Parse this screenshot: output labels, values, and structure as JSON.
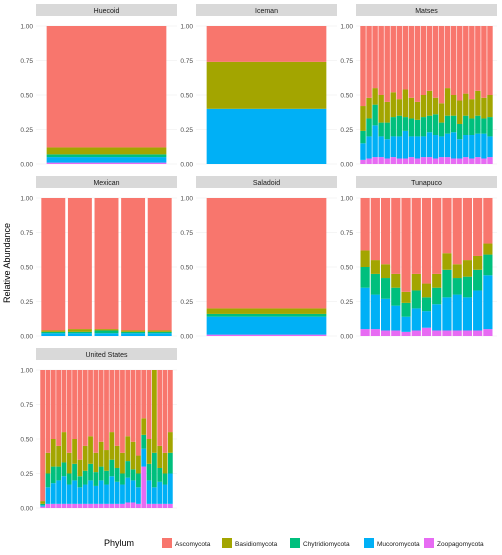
{
  "chart_data": {
    "type": "bar",
    "stacked": true,
    "layout": "facet-grid",
    "ylabel": "Relative Abundance",
    "ylim": [
      0,
      1
    ],
    "yticks": [
      "0.00",
      "0.25",
      "0.50",
      "0.75",
      "1.00"
    ],
    "legend": {
      "title": "Phylum",
      "placement": "bottom",
      "entries": [
        "Ascomycota",
        "Basidiomycota",
        "Chytridiomycota",
        "Mucoromycota",
        "Zoopagomycota"
      ]
    },
    "colors": {
      "Ascomycota": "#F8766D",
      "Basidiomycota": "#A3A500",
      "Chytridiomycota": "#00BF7D",
      "Mucoromycota": "#00B0F6",
      "Zoopagomycota": "#E76BF3"
    },
    "panel_background": "#ffffff",
    "strip_background": "#D9D9D9",
    "grid": true,
    "facets": [
      {
        "name": "Huecoid",
        "samples": [
          {
            "Ascomycota": 0.88,
            "Basidiomycota": 0.05,
            "Chytridiomycota": 0.02,
            "Mucoromycota": 0.04,
            "Zoopagomycota": 0.01
          }
        ]
      },
      {
        "name": "Iceman",
        "samples": [
          {
            "Ascomycota": 0.26,
            "Basidiomycota": 0.34,
            "Chytridiomycota": 0.0,
            "Mucoromycota": 0.4,
            "Zoopagomycota": 0.0
          }
        ]
      },
      {
        "name": "Matses",
        "samples": [
          {
            "Ascomycota": 0.58,
            "Basidiomycota": 0.18,
            "Chytridiomycota": 0.09,
            "Mucoromycota": 0.12,
            "Zoopagomycota": 0.03
          },
          {
            "Ascomycota": 0.52,
            "Basidiomycota": 0.15,
            "Chytridiomycota": 0.13,
            "Mucoromycota": 0.16,
            "Zoopagomycota": 0.04
          },
          {
            "Ascomycota": 0.45,
            "Basidiomycota": 0.12,
            "Chytridiomycota": 0.15,
            "Mucoromycota": 0.23,
            "Zoopagomycota": 0.05
          },
          {
            "Ascomycota": 0.5,
            "Basidiomycota": 0.2,
            "Chytridiomycota": 0.1,
            "Mucoromycota": 0.15,
            "Zoopagomycota": 0.05
          },
          {
            "Ascomycota": 0.55,
            "Basidiomycota": 0.15,
            "Chytridiomycota": 0.12,
            "Mucoromycota": 0.14,
            "Zoopagomycota": 0.04
          },
          {
            "Ascomycota": 0.48,
            "Basidiomycota": 0.18,
            "Chytridiomycota": 0.14,
            "Mucoromycota": 0.15,
            "Zoopagomycota": 0.05
          },
          {
            "Ascomycota": 0.53,
            "Basidiomycota": 0.12,
            "Chytridiomycota": 0.15,
            "Mucoromycota": 0.16,
            "Zoopagomycota": 0.04
          },
          {
            "Ascomycota": 0.46,
            "Basidiomycota": 0.2,
            "Chytridiomycota": 0.1,
            "Mucoromycota": 0.2,
            "Zoopagomycota": 0.04
          },
          {
            "Ascomycota": 0.52,
            "Basidiomycota": 0.15,
            "Chytridiomycota": 0.13,
            "Mucoromycota": 0.15,
            "Zoopagomycota": 0.05
          },
          {
            "Ascomycota": 0.55,
            "Basidiomycota": 0.13,
            "Chytridiomycota": 0.12,
            "Mucoromycota": 0.16,
            "Zoopagomycota": 0.04
          },
          {
            "Ascomycota": 0.5,
            "Basidiomycota": 0.16,
            "Chytridiomycota": 0.14,
            "Mucoromycota": 0.15,
            "Zoopagomycota": 0.05
          },
          {
            "Ascomycota": 0.47,
            "Basidiomycota": 0.18,
            "Chytridiomycota": 0.12,
            "Mucoromycota": 0.18,
            "Zoopagomycota": 0.05
          },
          {
            "Ascomycota": 0.52,
            "Basidiomycota": 0.12,
            "Chytridiomycota": 0.15,
            "Mucoromycota": 0.17,
            "Zoopagomycota": 0.04
          },
          {
            "Ascomycota": 0.56,
            "Basidiomycota": 0.14,
            "Chytridiomycota": 0.1,
            "Mucoromycota": 0.15,
            "Zoopagomycota": 0.05
          },
          {
            "Ascomycota": 0.45,
            "Basidiomycota": 0.2,
            "Chytridiomycota": 0.13,
            "Mucoromycota": 0.17,
            "Zoopagomycota": 0.05
          },
          {
            "Ascomycota": 0.5,
            "Basidiomycota": 0.15,
            "Chytridiomycota": 0.12,
            "Mucoromycota": 0.19,
            "Zoopagomycota": 0.04
          },
          {
            "Ascomycota": 0.54,
            "Basidiomycota": 0.17,
            "Chytridiomycota": 0.11,
            "Mucoromycota": 0.14,
            "Zoopagomycota": 0.04
          },
          {
            "Ascomycota": 0.49,
            "Basidiomycota": 0.16,
            "Chytridiomycota": 0.14,
            "Mucoromycota": 0.16,
            "Zoopagomycota": 0.05
          },
          {
            "Ascomycota": 0.53,
            "Basidiomycota": 0.14,
            "Chytridiomycota": 0.12,
            "Mucoromycota": 0.17,
            "Zoopagomycota": 0.04
          },
          {
            "Ascomycota": 0.47,
            "Basidiomycota": 0.18,
            "Chytridiomycota": 0.13,
            "Mucoromycota": 0.17,
            "Zoopagomycota": 0.05
          },
          {
            "Ascomycota": 0.52,
            "Basidiomycota": 0.15,
            "Chytridiomycota": 0.11,
            "Mucoromycota": 0.18,
            "Zoopagomycota": 0.04
          },
          {
            "Ascomycota": 0.5,
            "Basidiomycota": 0.16,
            "Chytridiomycota": 0.14,
            "Mucoromycota": 0.15,
            "Zoopagomycota": 0.05
          }
        ]
      },
      {
        "name": "Mexican",
        "samples": [
          {
            "Ascomycota": 0.96,
            "Basidiomycota": 0.01,
            "Chytridiomycota": 0.01,
            "Mucoromycota": 0.02,
            "Zoopagomycota": 0.0
          },
          {
            "Ascomycota": 0.95,
            "Basidiomycota": 0.02,
            "Chytridiomycota": 0.01,
            "Mucoromycota": 0.02,
            "Zoopagomycota": 0.0
          },
          {
            "Ascomycota": 0.95,
            "Basidiomycota": 0.01,
            "Chytridiomycota": 0.02,
            "Mucoromycota": 0.02,
            "Zoopagomycota": 0.0
          },
          {
            "Ascomycota": 0.96,
            "Basidiomycota": 0.01,
            "Chytridiomycota": 0.01,
            "Mucoromycota": 0.02,
            "Zoopagomycota": 0.0
          },
          {
            "Ascomycota": 0.96,
            "Basidiomycota": 0.01,
            "Chytridiomycota": 0.01,
            "Mucoromycota": 0.02,
            "Zoopagomycota": 0.0
          }
        ]
      },
      {
        "name": "Saladoid",
        "samples": [
          {
            "Ascomycota": 0.8,
            "Basidiomycota": 0.04,
            "Chytridiomycota": 0.02,
            "Mucoromycota": 0.13,
            "Zoopagomycota": 0.01
          }
        ]
      },
      {
        "name": "Tunapuco",
        "samples": [
          {
            "Ascomycota": 0.38,
            "Basidiomycota": 0.12,
            "Chytridiomycota": 0.15,
            "Mucoromycota": 0.3,
            "Zoopagomycota": 0.05
          },
          {
            "Ascomycota": 0.45,
            "Basidiomycota": 0.1,
            "Chytridiomycota": 0.15,
            "Mucoromycota": 0.25,
            "Zoopagomycota": 0.05
          },
          {
            "Ascomycota": 0.48,
            "Basidiomycota": 0.1,
            "Chytridiomycota": 0.15,
            "Mucoromycota": 0.23,
            "Zoopagomycota": 0.04
          },
          {
            "Ascomycota": 0.55,
            "Basidiomycota": 0.1,
            "Chytridiomycota": 0.13,
            "Mucoromycota": 0.18,
            "Zoopagomycota": 0.04
          },
          {
            "Ascomycota": 0.68,
            "Basidiomycota": 0.08,
            "Chytridiomycota": 0.1,
            "Mucoromycota": 0.11,
            "Zoopagomycota": 0.03
          },
          {
            "Ascomycota": 0.55,
            "Basidiomycota": 0.12,
            "Chytridiomycota": 0.13,
            "Mucoromycota": 0.16,
            "Zoopagomycota": 0.04
          },
          {
            "Ascomycota": 0.62,
            "Basidiomycota": 0.1,
            "Chytridiomycota": 0.1,
            "Mucoromycota": 0.12,
            "Zoopagomycota": 0.06
          },
          {
            "Ascomycota": 0.55,
            "Basidiomycota": 0.1,
            "Chytridiomycota": 0.12,
            "Mucoromycota": 0.19,
            "Zoopagomycota": 0.04
          },
          {
            "Ascomycota": 0.4,
            "Basidiomycota": 0.12,
            "Chytridiomycota": 0.2,
            "Mucoromycota": 0.24,
            "Zoopagomycota": 0.04
          },
          {
            "Ascomycota": 0.48,
            "Basidiomycota": 0.1,
            "Chytridiomycota": 0.12,
            "Mucoromycota": 0.26,
            "Zoopagomycota": 0.04
          },
          {
            "Ascomycota": 0.45,
            "Basidiomycota": 0.12,
            "Chytridiomycota": 0.15,
            "Mucoromycota": 0.24,
            "Zoopagomycota": 0.04
          },
          {
            "Ascomycota": 0.42,
            "Basidiomycota": 0.1,
            "Chytridiomycota": 0.15,
            "Mucoromycota": 0.29,
            "Zoopagomycota": 0.04
          },
          {
            "Ascomycota": 0.33,
            "Basidiomycota": 0.08,
            "Chytridiomycota": 0.15,
            "Mucoromycota": 0.39,
            "Zoopagomycota": 0.05
          }
        ]
      },
      {
        "name": "United States",
        "samples": [
          {
            "Ascomycota": 0.95,
            "Basidiomycota": 0.02,
            "Chytridiomycota": 0.01,
            "Mucoromycota": 0.01,
            "Zoopagomycota": 0.01
          },
          {
            "Ascomycota": 0.6,
            "Basidiomycota": 0.15,
            "Chytridiomycota": 0.1,
            "Mucoromycota": 0.12,
            "Zoopagomycota": 0.03
          },
          {
            "Ascomycota": 0.5,
            "Basidiomycota": 0.2,
            "Chytridiomycota": 0.12,
            "Mucoromycota": 0.15,
            "Zoopagomycota": 0.03
          },
          {
            "Ascomycota": 0.55,
            "Basidiomycota": 0.15,
            "Chytridiomycota": 0.1,
            "Mucoromycota": 0.17,
            "Zoopagomycota": 0.03
          },
          {
            "Ascomycota": 0.45,
            "Basidiomycota": 0.22,
            "Chytridiomycota": 0.1,
            "Mucoromycota": 0.2,
            "Zoopagomycota": 0.03
          },
          {
            "Ascomycota": 0.6,
            "Basidiomycota": 0.15,
            "Chytridiomycota": 0.08,
            "Mucoromycota": 0.14,
            "Zoopagomycota": 0.03
          },
          {
            "Ascomycota": 0.5,
            "Basidiomycota": 0.18,
            "Chytridiomycota": 0.12,
            "Mucoromycota": 0.17,
            "Zoopagomycota": 0.03
          },
          {
            "Ascomycota": 0.65,
            "Basidiomycota": 0.12,
            "Chytridiomycota": 0.08,
            "Mucoromycota": 0.12,
            "Zoopagomycota": 0.03
          },
          {
            "Ascomycota": 0.55,
            "Basidiomycota": 0.18,
            "Chytridiomycota": 0.1,
            "Mucoromycota": 0.14,
            "Zoopagomycota": 0.03
          },
          {
            "Ascomycota": 0.48,
            "Basidiomycota": 0.2,
            "Chytridiomycota": 0.12,
            "Mucoromycota": 0.17,
            "Zoopagomycota": 0.03
          },
          {
            "Ascomycota": 0.6,
            "Basidiomycota": 0.14,
            "Chytridiomycota": 0.1,
            "Mucoromycota": 0.13,
            "Zoopagomycota": 0.03
          },
          {
            "Ascomycota": 0.52,
            "Basidiomycota": 0.18,
            "Chytridiomycota": 0.1,
            "Mucoromycota": 0.17,
            "Zoopagomycota": 0.03
          },
          {
            "Ascomycota": 0.58,
            "Basidiomycota": 0.15,
            "Chytridiomycota": 0.1,
            "Mucoromycota": 0.14,
            "Zoopagomycota": 0.03
          },
          {
            "Ascomycota": 0.45,
            "Basidiomycota": 0.2,
            "Chytridiomycota": 0.12,
            "Mucoromycota": 0.2,
            "Zoopagomycota": 0.03
          },
          {
            "Ascomycota": 0.55,
            "Basidiomycota": 0.16,
            "Chytridiomycota": 0.1,
            "Mucoromycota": 0.16,
            "Zoopagomycota": 0.03
          },
          {
            "Ascomycota": 0.6,
            "Basidiomycota": 0.15,
            "Chytridiomycota": 0.08,
            "Mucoromycota": 0.14,
            "Zoopagomycota": 0.03
          },
          {
            "Ascomycota": 0.48,
            "Basidiomycota": 0.18,
            "Chytridiomycota": 0.12,
            "Mucoromycota": 0.18,
            "Zoopagomycota": 0.04
          },
          {
            "Ascomycota": 0.52,
            "Basidiomycota": 0.2,
            "Chytridiomycota": 0.08,
            "Mucoromycota": 0.16,
            "Zoopagomycota": 0.04
          },
          {
            "Ascomycota": 0.62,
            "Basidiomycota": 0.13,
            "Chytridiomycota": 0.1,
            "Mucoromycota": 0.12,
            "Zoopagomycota": 0.03
          },
          {
            "Ascomycota": 0.35,
            "Basidiomycota": 0.12,
            "Chytridiomycota": 0.1,
            "Mucoromycota": 0.13,
            "Zoopagomycota": 0.3
          },
          {
            "Ascomycota": 0.5,
            "Basidiomycota": 0.18,
            "Chytridiomycota": 0.12,
            "Mucoromycota": 0.17,
            "Zoopagomycota": 0.03
          },
          {
            "Ascomycota": 0.0,
            "Basidiomycota": 0.6,
            "Chytridiomycota": 0.25,
            "Mucoromycota": 0.12,
            "Zoopagomycota": 0.03
          },
          {
            "Ascomycota": 0.55,
            "Basidiomycota": 0.16,
            "Chytridiomycota": 0.1,
            "Mucoromycota": 0.16,
            "Zoopagomycota": 0.03
          },
          {
            "Ascomycota": 0.6,
            "Basidiomycota": 0.15,
            "Chytridiomycota": 0.08,
            "Mucoromycota": 0.14,
            "Zoopagomycota": 0.03
          },
          {
            "Ascomycota": 0.45,
            "Basidiomycota": 0.15,
            "Chytridiomycota": 0.15,
            "Mucoromycota": 0.22,
            "Zoopagomycota": 0.03
          }
        ]
      }
    ]
  }
}
